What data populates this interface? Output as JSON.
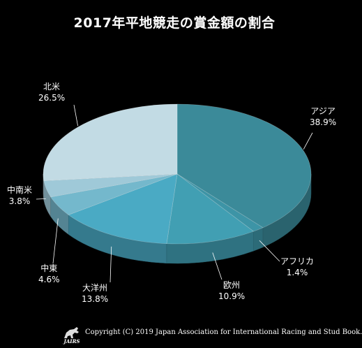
{
  "chart_data": {
    "type": "pie",
    "title": "2017年平地競走の賞金額の割合",
    "slices": [
      {
        "name": "アジア",
        "value": 38.9,
        "label": "38.9%",
        "color": "#3b8a99"
      },
      {
        "name": "アフリカ",
        "value": 1.4,
        "label": "1.4%",
        "color": "#3d94a6"
      },
      {
        "name": "欧州",
        "value": 10.9,
        "label": "10.9%",
        "color": "#419fb3"
      },
      {
        "name": "大洋州",
        "value": 13.8,
        "label": "13.8%",
        "color": "#4aaac4"
      },
      {
        "name": "中東",
        "value": 4.6,
        "label": "4.6%",
        "color": "#74b8cc"
      },
      {
        "name": "中南米",
        "value": 3.8,
        "label": "3.8%",
        "color": "#9fc9d8"
      },
      {
        "name": "北米",
        "value": 26.5,
        "label": "26.5%",
        "color": "#c2dbe4"
      }
    ]
  },
  "footer": {
    "logo_text": "JAIRS",
    "copyright": "Copyright (C) 2019 Japan Association for International Racing and Stud Book."
  }
}
